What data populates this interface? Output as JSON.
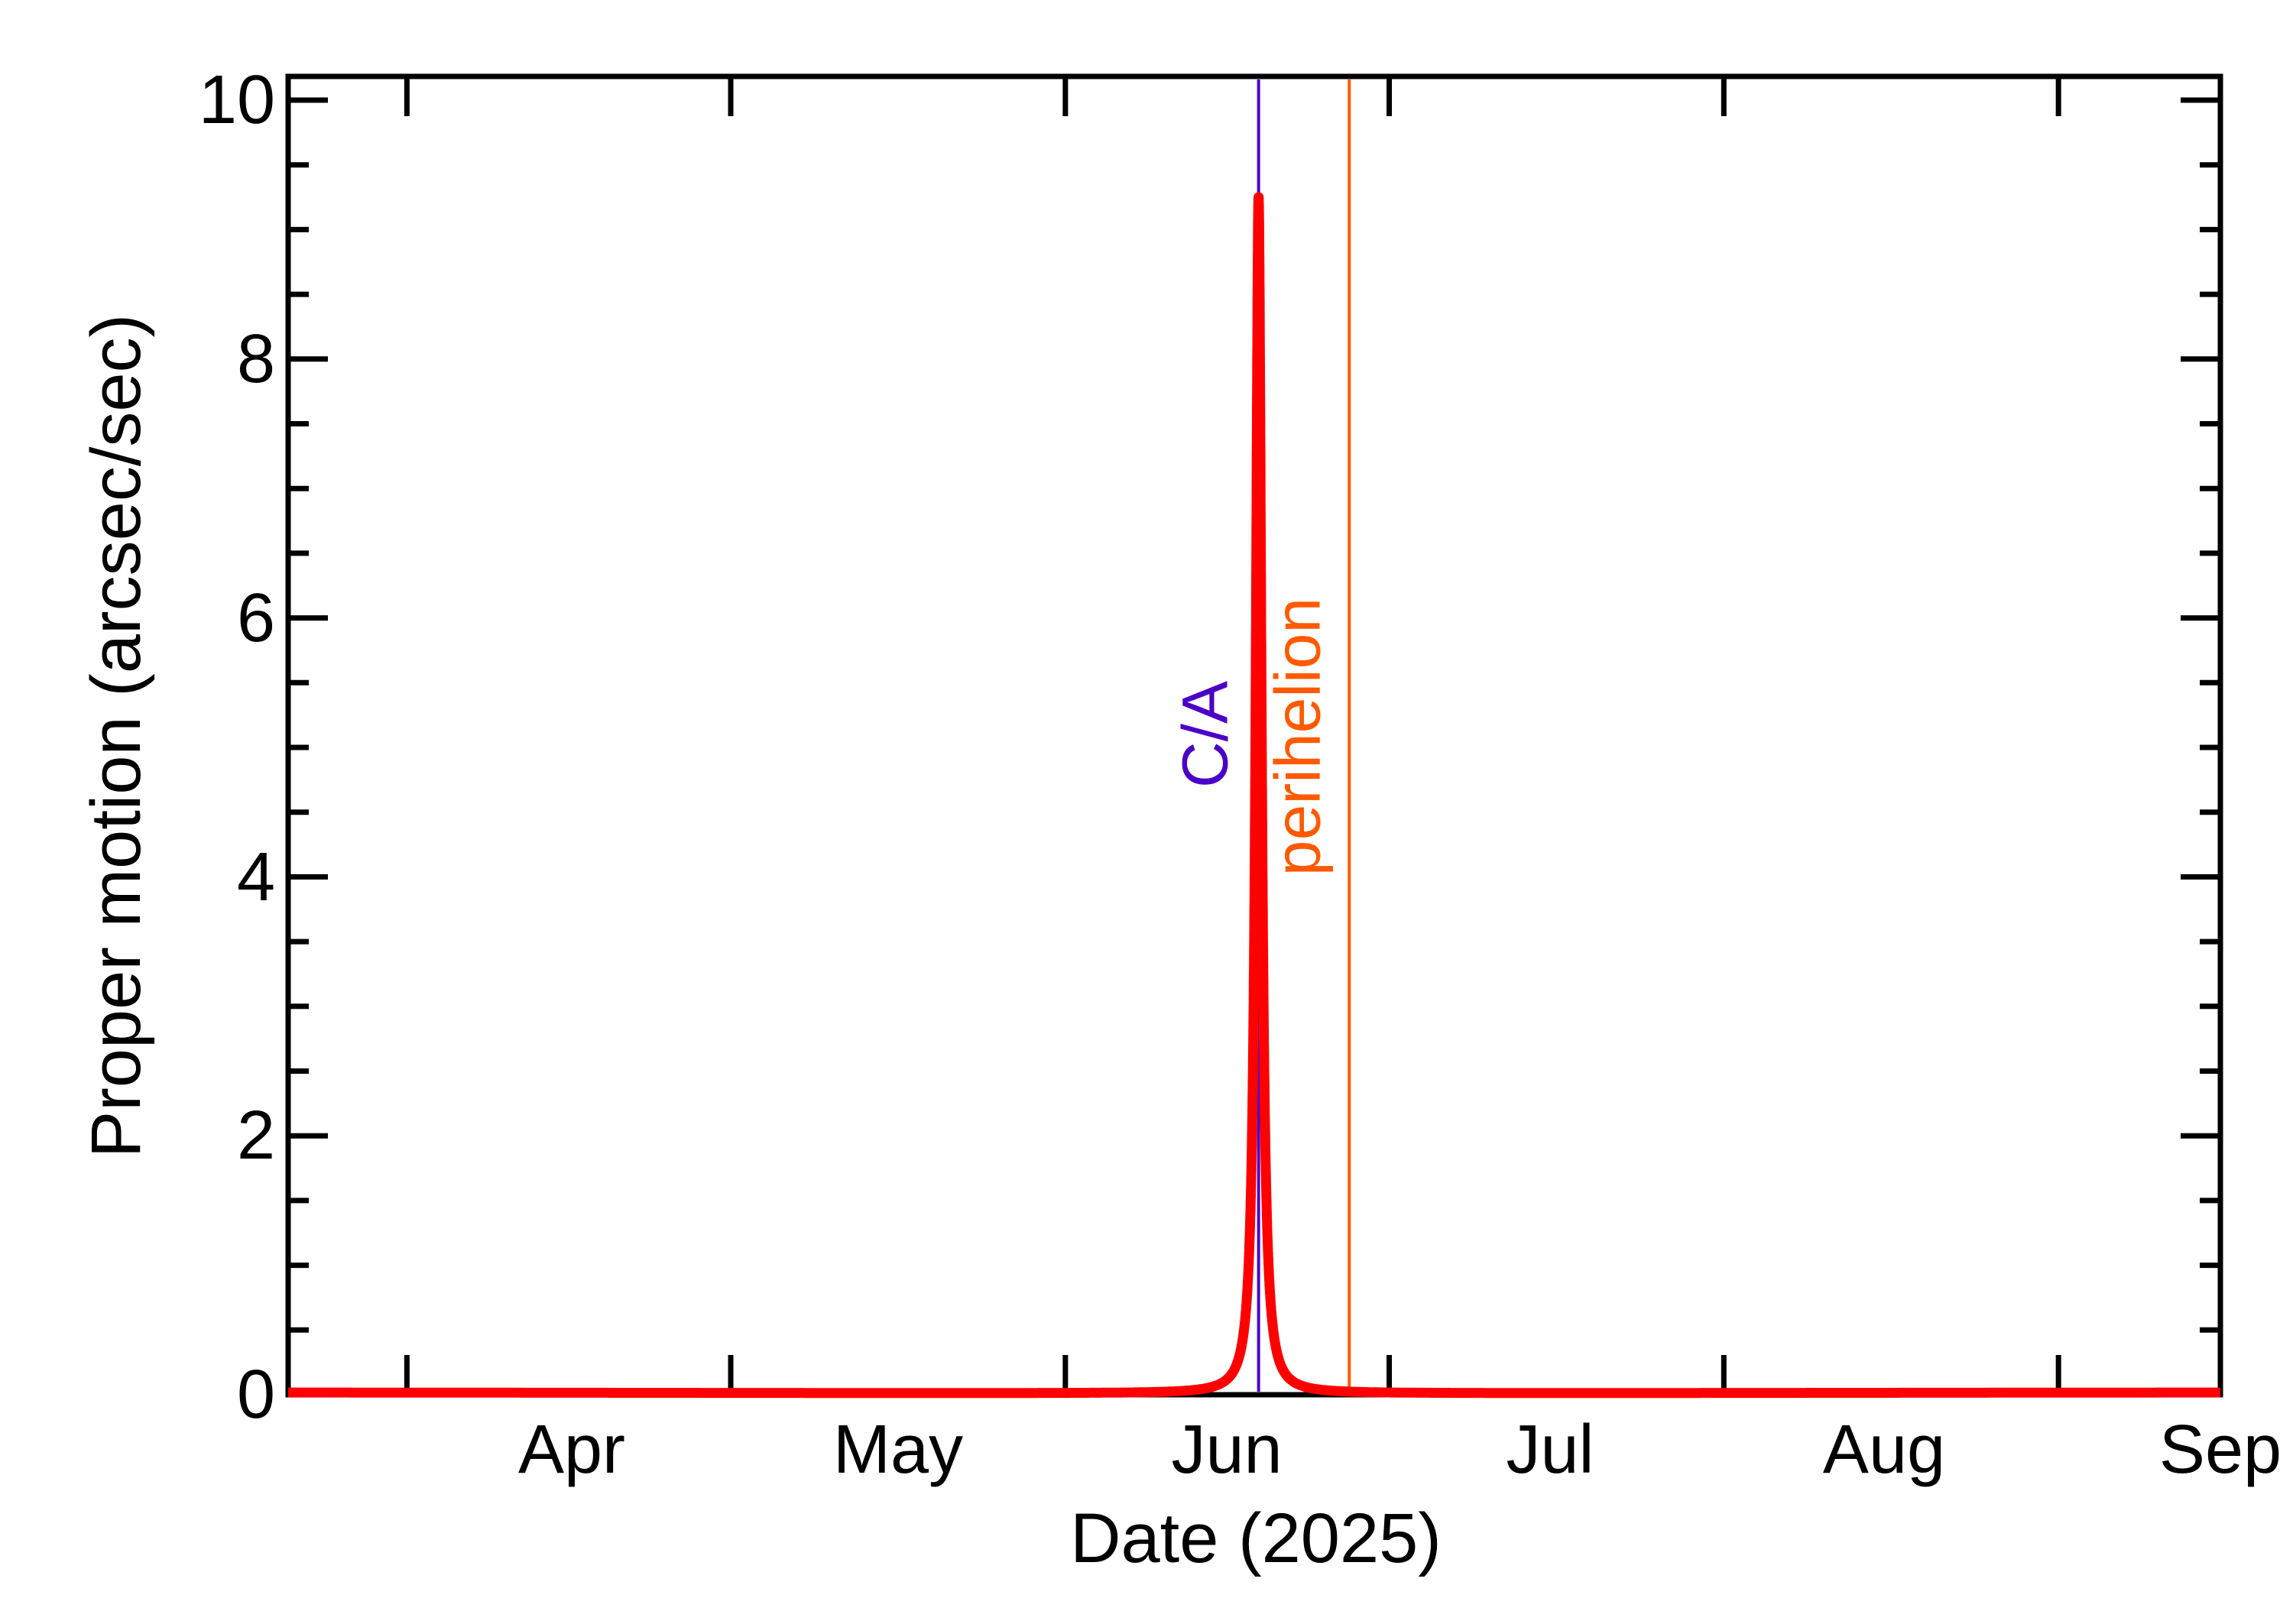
{
  "chart_data": {
    "type": "line",
    "title": "",
    "xlabel": "Date (2025)",
    "ylabel": "Proper motion (arcsec/sec)",
    "x_range": [
      "2025-03-21",
      "2025-09-16"
    ],
    "ylim": [
      0,
      10.2
    ],
    "grid": false,
    "legend": "none",
    "x_tick_marks": [
      "2025-04-01",
      "2025-05-01",
      "2025-06-01",
      "2025-07-01",
      "2025-08-01",
      "2025-09-01"
    ],
    "x_tick_labels": [
      "Apr",
      "May",
      "Jun",
      "Jul",
      "Aug",
      "Sep"
    ],
    "y_major_ticks": [
      0,
      2,
      4,
      6,
      8,
      10
    ],
    "y_minor_step": 0.5,
    "series": [
      {
        "name": "Proper motion",
        "color": "#ff0000",
        "x": [
          "2025-03-21",
          "2025-04-15",
          "2025-05-15",
          "2025-06-01",
          "2025-06-10",
          "2025-06-14",
          "2025-06-16",
          "2025-06-17",
          "2025-06-18",
          "2025-06-18.5",
          "2025-06-18.9",
          "2025-06-19.3",
          "2025-06-20",
          "2025-06-21",
          "2025-06-23",
          "2025-06-27",
          "2025-07-05",
          "2025-08-01",
          "2025-09-16"
        ],
        "y": [
          0.0,
          0.01,
          0.01,
          0.02,
          0.08,
          0.2,
          0.45,
          0.8,
          2.0,
          4.5,
          9.25,
          4.5,
          1.6,
          0.7,
          0.25,
          0.06,
          0.01,
          0.01,
          0.03
        ]
      }
    ],
    "vertical_markers": [
      {
        "label": "C/A",
        "date": "2025-06-18.9",
        "color": "#4b00c8"
      },
      {
        "label": "perihelion",
        "date": "2025-06-27.3",
        "color": "#ff5a00"
      }
    ],
    "peak": {
      "date": "2025-06-18.9",
      "value": 9.25
    }
  },
  "axes": {
    "x_title": "Date (2025)",
    "y_title": "Proper motion (arcsec/sec)",
    "x_labels": [
      "Apr",
      "May",
      "Jun",
      "Jul",
      "Aug",
      "Sep"
    ],
    "y_labels": [
      "0",
      "2",
      "4",
      "6",
      "8",
      "10"
    ]
  },
  "markers": {
    "ca_label": "C/A",
    "perihelion_label": "perihelion"
  },
  "colors": {
    "curve": "#ff0000",
    "ca": "#4b00c8",
    "perihelion": "#ff5a00",
    "axis": "#000000"
  }
}
